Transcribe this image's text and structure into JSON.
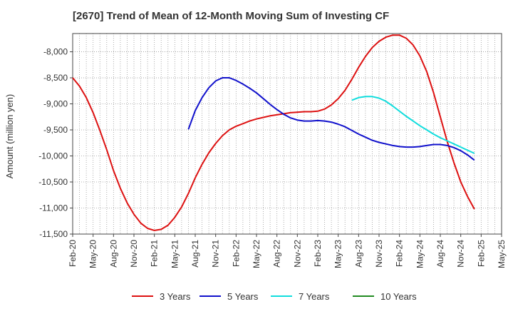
{
  "chart_data": {
    "type": "line",
    "title": "[2670]  Trend of Mean of 12-Month Moving Sum of Investing CF",
    "xlabel": "",
    "ylabel": "Amount (million yen)",
    "ylim": [
      -11500,
      -7650
    ],
    "yticks": [
      -8000,
      -8500,
      -9000,
      -9500,
      -10000,
      -10500,
      -11000,
      -11500
    ],
    "ytick_labels": [
      "-8,000",
      "-8,500",
      "-9,000",
      "-9,500",
      "-10,000",
      "-10,500",
      "-11,000",
      "-11,500"
    ],
    "xtick_labels": [
      "Feb-20",
      "May-20",
      "Aug-20",
      "Nov-20",
      "Feb-21",
      "May-21",
      "Aug-21",
      "Nov-21",
      "Feb-22",
      "May-22",
      "Aug-22",
      "Nov-22",
      "Feb-23",
      "May-23",
      "Aug-23",
      "Nov-23",
      "Feb-24",
      "May-24",
      "Aug-24",
      "Nov-24",
      "Feb-25",
      "May-25"
    ],
    "x_range_months": [
      0,
      63
    ],
    "grid": true,
    "legend_position": "bottom",
    "series": [
      {
        "name": "3 Years",
        "color": "#dd1111",
        "points": [
          [
            0,
            -8500
          ],
          [
            1,
            -8660
          ],
          [
            2,
            -8880
          ],
          [
            3,
            -9170
          ],
          [
            4,
            -9510
          ],
          [
            5,
            -9880
          ],
          [
            6,
            -10280
          ],
          [
            7,
            -10620
          ],
          [
            8,
            -10900
          ],
          [
            9,
            -11120
          ],
          [
            10,
            -11290
          ],
          [
            11,
            -11390
          ],
          [
            12,
            -11430
          ],
          [
            13,
            -11410
          ],
          [
            14,
            -11330
          ],
          [
            15,
            -11180
          ],
          [
            16,
            -10980
          ],
          [
            17,
            -10720
          ],
          [
            18,
            -10420
          ],
          [
            19,
            -10160
          ],
          [
            20,
            -9940
          ],
          [
            21,
            -9760
          ],
          [
            22,
            -9610
          ],
          [
            23,
            -9500
          ],
          [
            24,
            -9430
          ],
          [
            25,
            -9380
          ],
          [
            26,
            -9330
          ],
          [
            27,
            -9290
          ],
          [
            28,
            -9260
          ],
          [
            29,
            -9230
          ],
          [
            30,
            -9210
          ],
          [
            31,
            -9190
          ],
          [
            32,
            -9170
          ],
          [
            33,
            -9160
          ],
          [
            34,
            -9150
          ],
          [
            35,
            -9150
          ],
          [
            36,
            -9140
          ],
          [
            37,
            -9100
          ],
          [
            38,
            -9020
          ],
          [
            39,
            -8900
          ],
          [
            40,
            -8740
          ],
          [
            41,
            -8530
          ],
          [
            42,
            -8300
          ],
          [
            43,
            -8090
          ],
          [
            44,
            -7920
          ],
          [
            45,
            -7800
          ],
          [
            46,
            -7720
          ],
          [
            47,
            -7680
          ],
          [
            48,
            -7680
          ],
          [
            49,
            -7740
          ],
          [
            50,
            -7870
          ],
          [
            51,
            -8080
          ],
          [
            52,
            -8380
          ],
          [
            53,
            -8780
          ],
          [
            54,
            -9250
          ],
          [
            55,
            -9720
          ],
          [
            56,
            -10130
          ],
          [
            57,
            -10500
          ],
          [
            58,
            -10780
          ],
          [
            59,
            -11020
          ]
        ]
      },
      {
        "name": "5 Years",
        "color": "#1111cc",
        "points": [
          [
            17,
            -9490
          ],
          [
            18,
            -9130
          ],
          [
            19,
            -8880
          ],
          [
            20,
            -8690
          ],
          [
            21,
            -8560
          ],
          [
            22,
            -8500
          ],
          [
            23,
            -8500
          ],
          [
            24,
            -8550
          ],
          [
            25,
            -8620
          ],
          [
            26,
            -8700
          ],
          [
            27,
            -8790
          ],
          [
            28,
            -8900
          ],
          [
            29,
            -9010
          ],
          [
            30,
            -9110
          ],
          [
            31,
            -9200
          ],
          [
            32,
            -9270
          ],
          [
            33,
            -9310
          ],
          [
            34,
            -9330
          ],
          [
            35,
            -9330
          ],
          [
            36,
            -9320
          ],
          [
            37,
            -9330
          ],
          [
            38,
            -9350
          ],
          [
            39,
            -9390
          ],
          [
            40,
            -9440
          ],
          [
            41,
            -9510
          ],
          [
            42,
            -9580
          ],
          [
            43,
            -9640
          ],
          [
            44,
            -9700
          ],
          [
            45,
            -9740
          ],
          [
            46,
            -9770
          ],
          [
            47,
            -9800
          ],
          [
            48,
            -9820
          ],
          [
            49,
            -9830
          ],
          [
            50,
            -9830
          ],
          [
            51,
            -9820
          ],
          [
            52,
            -9800
          ],
          [
            53,
            -9780
          ],
          [
            54,
            -9780
          ],
          [
            55,
            -9800
          ],
          [
            56,
            -9840
          ],
          [
            57,
            -9900
          ],
          [
            58,
            -9980
          ],
          [
            59,
            -10080
          ]
        ]
      },
      {
        "name": "7 Years",
        "color": "#11dddd",
        "points": [
          [
            41,
            -8930
          ],
          [
            42,
            -8880
          ],
          [
            43,
            -8860
          ],
          [
            44,
            -8860
          ],
          [
            45,
            -8890
          ],
          [
            46,
            -8950
          ],
          [
            47,
            -9040
          ],
          [
            48,
            -9140
          ],
          [
            49,
            -9240
          ],
          [
            50,
            -9330
          ],
          [
            51,
            -9420
          ],
          [
            52,
            -9500
          ],
          [
            53,
            -9580
          ],
          [
            54,
            -9650
          ],
          [
            55,
            -9710
          ],
          [
            56,
            -9770
          ],
          [
            57,
            -9830
          ],
          [
            58,
            -9890
          ],
          [
            59,
            -9950
          ]
        ]
      },
      {
        "name": "10 Years",
        "color": "#228b22",
        "points": []
      }
    ]
  }
}
